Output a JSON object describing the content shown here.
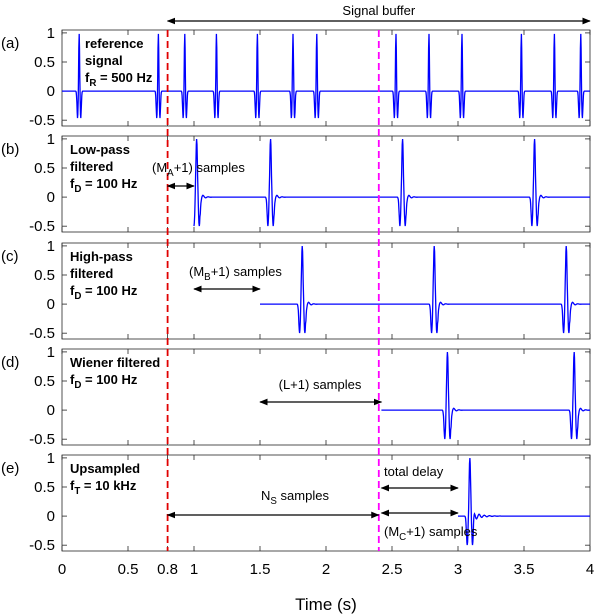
{
  "chart_data": {
    "type": "line",
    "xlabel": "Time (s)",
    "xlim": [
      0,
      4
    ],
    "xticks": [
      0,
      0.5,
      0.8,
      1,
      1.5,
      2,
      2.5,
      3,
      3.5,
      4
    ],
    "xtick_labels": [
      "0",
      "0.5",
      "0.8",
      "1",
      "1.5",
      "2",
      "2.5",
      "3",
      "3.5",
      "4"
    ],
    "line_color": "#0000ff",
    "panels": [
      {
        "letter": "(a)",
        "label_lines": [
          "reference",
          "signal"
        ],
        "freq": {
          "sym": "f",
          "sub": "R",
          "text": " = 500 Hz"
        },
        "ylim": [
          -0.6,
          1.05
        ],
        "yticks": [
          -0.5,
          0,
          0.5,
          1
        ],
        "ytick_labels": [
          "-0.5",
          "0",
          "0.5",
          "1"
        ],
        "start": 0,
        "spike_times": [
          0.13,
          0.73,
          0.93,
          1.17,
          1.48,
          1.75,
          1.93,
          2.53,
          2.78,
          3.03,
          3.48,
          3.73,
          3.93
        ],
        "spike_shape": "sharp"
      },
      {
        "letter": "(b)",
        "label_lines": [
          "Low-pass",
          "filtered"
        ],
        "freq": {
          "sym": "f",
          "sub": "D",
          "text": " = 100 Hz"
        },
        "ylim": [
          -0.6,
          1.05
        ],
        "yticks": [
          -0.5,
          0,
          0.5,
          1
        ],
        "ytick_labels": [
          "-0.5",
          "0",
          "0.5",
          "1"
        ],
        "start": 1.0,
        "spike_times": [
          1.02,
          1.58,
          2.58,
          3.58
        ],
        "spike_shape": "filtered"
      },
      {
        "letter": "(c)",
        "label_lines": [
          "High-pass",
          "filtered"
        ],
        "freq": {
          "sym": "f",
          "sub": "D",
          "text": " = 100 Hz"
        },
        "ylim": [
          -0.6,
          1.05
        ],
        "yticks": [
          -0.5,
          0,
          0.5,
          1
        ],
        "ytick_labels": [
          "-0.5",
          "0",
          "0.5",
          "1"
        ],
        "start": 1.5,
        "spike_times": [
          1.82,
          2.82,
          3.82
        ],
        "spike_shape": "filtered"
      },
      {
        "letter": "(d)",
        "label_lines": [
          "Wiener filtered"
        ],
        "freq": {
          "sym": "f",
          "sub": "D",
          "text": " = 100 Hz"
        },
        "ylim": [
          -0.6,
          1.05
        ],
        "yticks": [
          -0.5,
          0,
          0.5,
          1
        ],
        "ytick_labels": [
          "-0.5",
          "0",
          "0.5",
          "1"
        ],
        "start": 2.42,
        "spike_times": [
          2.92,
          3.88
        ],
        "spike_shape": "filtered"
      },
      {
        "letter": "(e)",
        "label_lines": [
          "Upsampled"
        ],
        "freq": {
          "sym": "f",
          "sub": "T",
          "text": " = 10 kHz"
        },
        "ylim": [
          -0.6,
          1.05
        ],
        "yticks": [
          -0.5,
          0,
          0.5,
          1
        ],
        "ytick_labels": [
          "-0.5",
          "0",
          "0.5",
          "1"
        ],
        "start": 3.0,
        "spike_times": [
          3.09
        ],
        "spike_shape": "upsampled"
      }
    ],
    "vlines": [
      {
        "x": 0.8,
        "color": "#e00000"
      },
      {
        "x": 2.4,
        "color": "#ff00ff"
      }
    ],
    "annotations": {
      "signal_buffer": {
        "label": "Signal buffer",
        "x0": 0.8,
        "x1": 4
      },
      "ma": {
        "pre": "(M",
        "sub": "A",
        "post": "+1) samples",
        "x0": 0.8,
        "x1": 1.0
      },
      "mb": {
        "pre": "(M",
        "sub": "B",
        "post": "+1) samples",
        "x0": 1.0,
        "x1": 1.5
      },
      "l": {
        "label": "(L+1) samples",
        "x0": 1.5,
        "x1": 2.42
      },
      "ns": {
        "pre": "N",
        "sub": "S",
        "post": " samples",
        "x0": 0.8,
        "x1": 2.4
      },
      "total_delay": {
        "label": "total delay",
        "x0": 2.42,
        "x1": 3.0
      },
      "mc": {
        "pre": "(M",
        "sub": "C",
        "post": "+1) samples",
        "x0": 2.42,
        "x1": 3.0
      }
    }
  }
}
